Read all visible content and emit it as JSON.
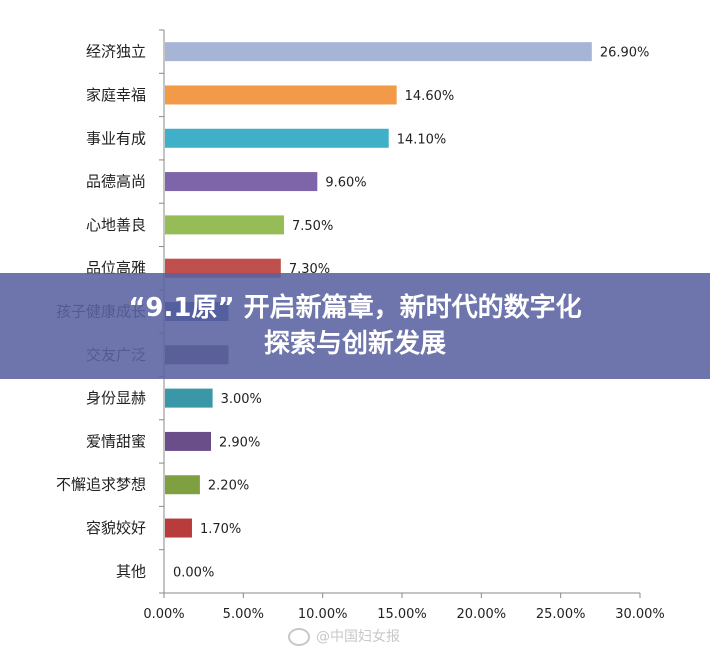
{
  "chart_data": {
    "type": "bar",
    "orientation": "horizontal",
    "categories": [
      "经济独立",
      "家庭幸福",
      "事业有成",
      "品德高尚",
      "心地善良",
      "品位高雅",
      "孩子健康成长",
      "交友广泛",
      "身份显赫",
      "爱情甜蜜",
      "不懈追求梦想",
      "容貌姣好",
      "其他"
    ],
    "values": [
      26.9,
      14.6,
      14.1,
      9.6,
      7.5,
      7.3,
      4.0,
      4.0,
      3.0,
      2.9,
      2.2,
      1.7,
      0.0
    ],
    "value_labels": [
      "26.90%",
      "14.60%",
      "14.10%",
      "9.60%",
      "7.50%",
      "7.30%",
      "",
      "",
      "3.00%",
      "2.90%",
      "2.20%",
      "1.70%",
      "0.00%"
    ],
    "colors": [
      "#a6b4d6",
      "#f39a48",
      "#3fb0c8",
      "#7e64a8",
      "#96bc58",
      "#c0504d",
      "#2d4f9a",
      "#5a4060",
      "#3a97a8",
      "#6a4e8a",
      "#7ea040",
      "#b83c3c",
      "#999999"
    ],
    "xlim": [
      0,
      30
    ],
    "xticks": [
      "0.00%",
      "5.00%",
      "10.00%",
      "15.00%",
      "20.00%",
      "25.00%",
      "30.00%"
    ],
    "grid": false,
    "legend": "none"
  },
  "overlay": {
    "line1": "“9.1原” 开启新篇章，新时代的数字化",
    "line2": "探索与创新发展"
  },
  "watermark": {
    "text": "@中国妇女报"
  }
}
